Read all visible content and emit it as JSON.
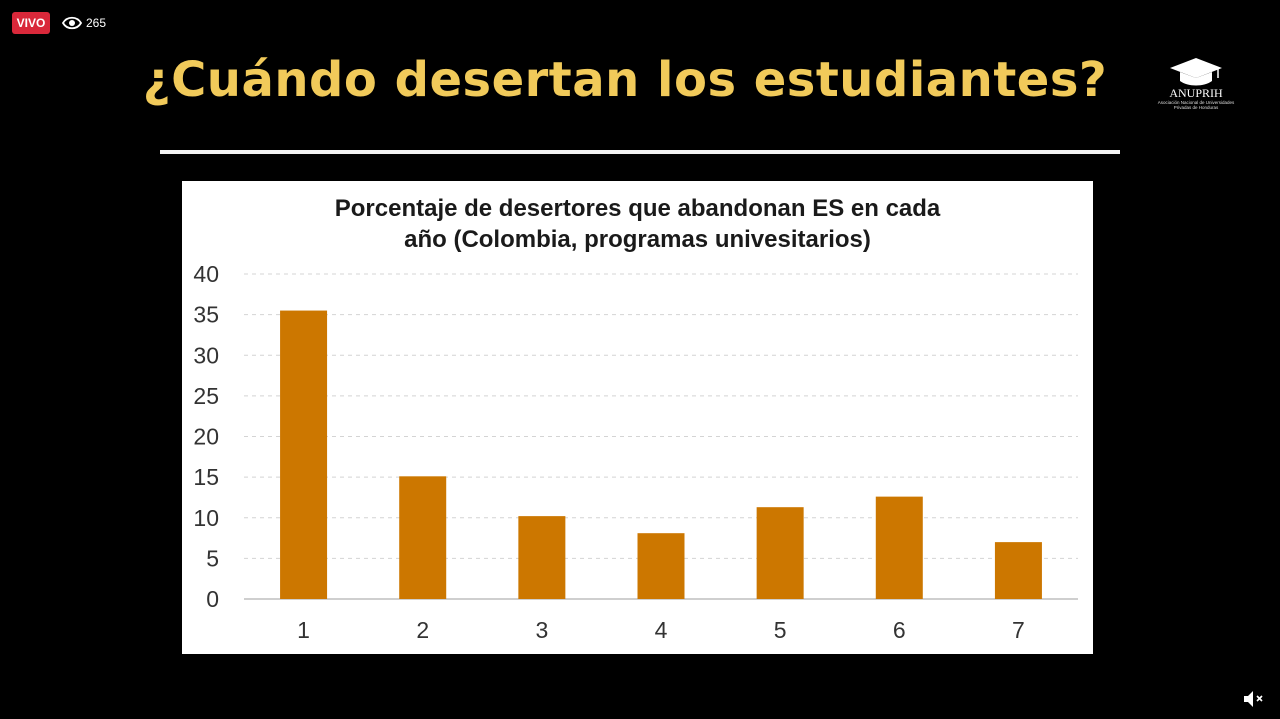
{
  "stream": {
    "live_label": "VIVO",
    "viewer_count": "265",
    "icons": {
      "viewers": "eye-icon",
      "volume": "volume-muted-icon"
    }
  },
  "slide": {
    "title": "¿Cuándo desertan los estudiantes?",
    "logo": {
      "name": "ANUPRIH",
      "subtitle": "Asociación Nacional de Universidades Privadas de Honduras"
    }
  },
  "colors": {
    "title": "#f1ca5a",
    "bar": "#cc7700",
    "live": "#d9283a"
  },
  "chart_data": {
    "type": "bar",
    "title_lines": [
      "Porcentaje de desertores que abandonan ES en cada",
      "año (Colombia, programas univesitarios)"
    ],
    "categories": [
      "1",
      "2",
      "3",
      "4",
      "5",
      "6",
      "7"
    ],
    "values": [
      35.5,
      15.1,
      10.2,
      8.1,
      11.3,
      12.6,
      7.0
    ],
    "yticks": [
      0,
      5,
      10,
      15,
      20,
      25,
      30,
      35,
      40
    ],
    "ylim": [
      0,
      40
    ],
    "grid": true,
    "xlabel": "",
    "ylabel": ""
  }
}
